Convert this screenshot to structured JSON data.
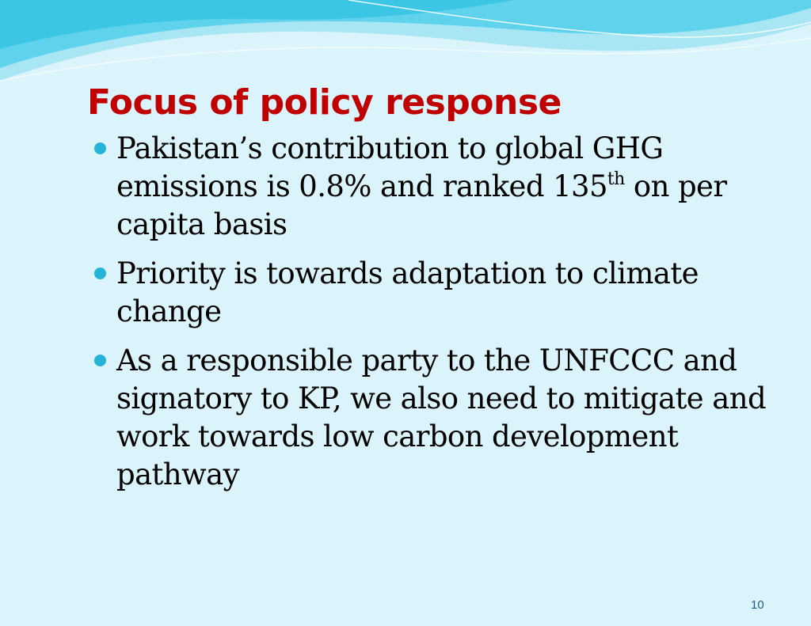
{
  "slide": {
    "title": "Focus of policy response",
    "bullets": [
      {
        "text_before_sup": "Pakistan’s contribution to global GHG emissions is 0.8% and ranked 135",
        "superscript": "th",
        "text_after_sup": " on per capita basis"
      },
      {
        "text": "Priority is towards adaptation to climate change"
      },
      {
        "text": " As a responsible party to the UNFCCC and signatory to KP, we also need to mitigate and work towards low carbon development pathway"
      }
    ],
    "slide_number": "10"
  },
  "colors": {
    "background": "#dbf3fa",
    "title": "#c00000",
    "bullet": "#26b3d8",
    "wave_dark": "#3cc6e6",
    "wave_light": "#a9e6f4",
    "slide_number": "#1d5f85"
  },
  "icons": {
    "bullet": "filled-circle-icon"
  }
}
